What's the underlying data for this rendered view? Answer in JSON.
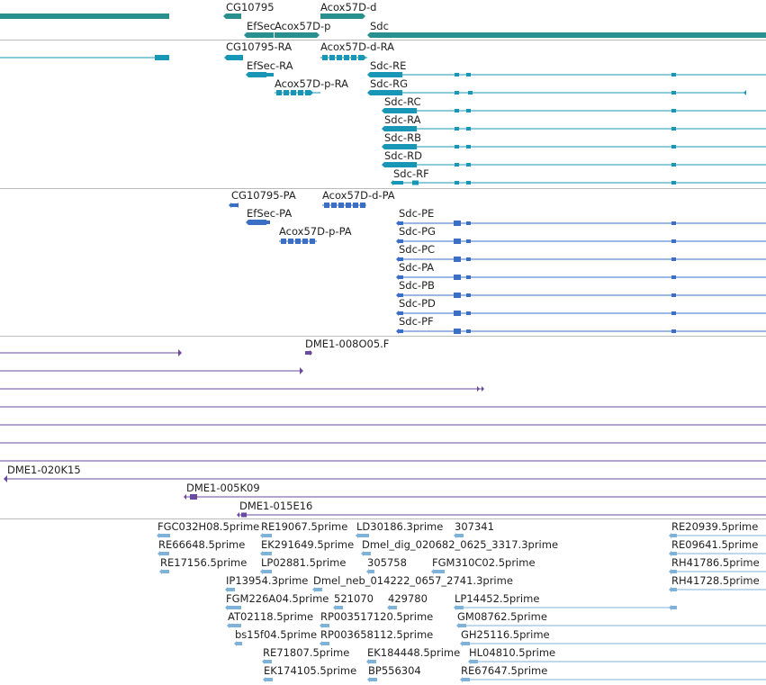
{
  "colors": {
    "gene": "#2a8f8f",
    "transcript": "#1797b5",
    "protein": "#3a6fc4",
    "clone": "#6a4aa0",
    "est": "#7fb2d9",
    "separator": "#bbbbbb"
  },
  "genes": {
    "labels": [
      "CG10795",
      "Acox57D-d",
      "EfSec",
      "Acox57D-p",
      "Sdc"
    ]
  },
  "transcripts": {
    "labels": [
      "CG10795-RA",
      "Acox57D-d-RA",
      "EfSec-RA",
      "Sdc-RE",
      "Acox57D-p-RA",
      "Sdc-RG",
      "Sdc-RC",
      "Sdc-RA",
      "Sdc-RB",
      "Sdc-RD",
      "Sdc-RF"
    ]
  },
  "proteins": {
    "labels": [
      "CG10795-PA",
      "Acox57D-d-PA",
      "EfSec-PA",
      "Sdc-PE",
      "Acox57D-p-PA",
      "Sdc-PG",
      "Sdc-PC",
      "Sdc-PA",
      "Sdc-PB",
      "Sdc-PD",
      "Sdc-PF"
    ]
  },
  "clones": {
    "labels": [
      "DME1-008O05.F",
      "DME1-020K15",
      "DME1-005K09",
      "DME1-015E16"
    ]
  },
  "ests": {
    "labels": [
      "FGC032H08.5prime",
      "RE19067.5prime",
      "LD30186.3prime",
      "307341",
      "RE20939.5prime",
      "RE66648.5prime",
      "EK291649.5prime",
      "Dmel_dig_020682_0625_3317.3prime",
      "RE09641.5prime",
      "RE17156.5prime",
      "LP02881.5prime",
      "305758",
      "FGM310C02.5prime",
      "RH41786.5prime",
      "IP13954.3prime",
      "Dmel_neb_014222_0657_2741.3prime",
      "RH41728.5prime",
      "FGM226A04.5prime",
      "521070",
      "429780",
      "LP14452.5prime",
      "AT02118.5prime",
      "RP003517120.5prime",
      "GM08762.5prime",
      "bs15f04.5prime",
      "RP003658112.5prime",
      "GH25116.5prime",
      "RE71807.5prime",
      "EK184448.5prime",
      "HL04810.5prime",
      "EK174105.5prime",
      "BP556304",
      "RE67647.5prime"
    ]
  }
}
